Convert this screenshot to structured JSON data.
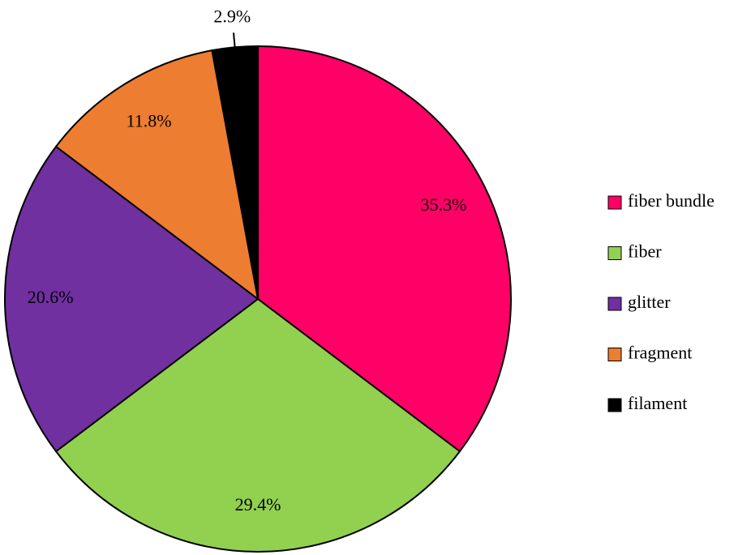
{
  "chart_data": {
    "type": "pie",
    "categories": [
      "fiber bundle",
      "fiber",
      "glitter",
      "fragment",
      "filament"
    ],
    "values": [
      35.3,
      29.4,
      20.6,
      11.8,
      2.9
    ],
    "value_labels": [
      "35.3%",
      "29.4%",
      "20.6%",
      "11.8%",
      "2.9%"
    ],
    "colors": [
      "#ff0066",
      "#92d050",
      "#7030a0",
      "#ed7d31",
      "#000000"
    ],
    "legend": "right"
  }
}
